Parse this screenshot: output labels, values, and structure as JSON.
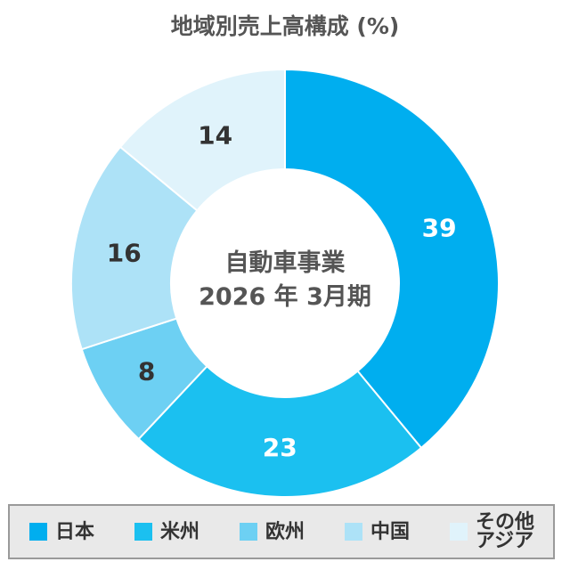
{
  "chart_data": {
    "type": "pie",
    "title": "地域別売上高構成 (%)",
    "center_label": [
      "自動車事業",
      "2026 年 3月期"
    ],
    "slices": [
      {
        "label": "日本",
        "value": 39,
        "color": "#00AEEF",
        "label_color": "#ffffff"
      },
      {
        "label": "米州",
        "value": 23,
        "color": "#1BC0F0",
        "label_color": "#ffffff"
      },
      {
        "label": "欧州",
        "value": 8,
        "color": "#6DD0F3",
        "label_color": "#333333"
      },
      {
        "label": "中国",
        "value": 16,
        "color": "#ADE2F7",
        "label_color": "#333333"
      },
      {
        "label": "その他\nアジア",
        "value": 14,
        "color": "#E0F3FB",
        "label_color": "#333333"
      }
    ],
    "legend_position": "bottom"
  }
}
